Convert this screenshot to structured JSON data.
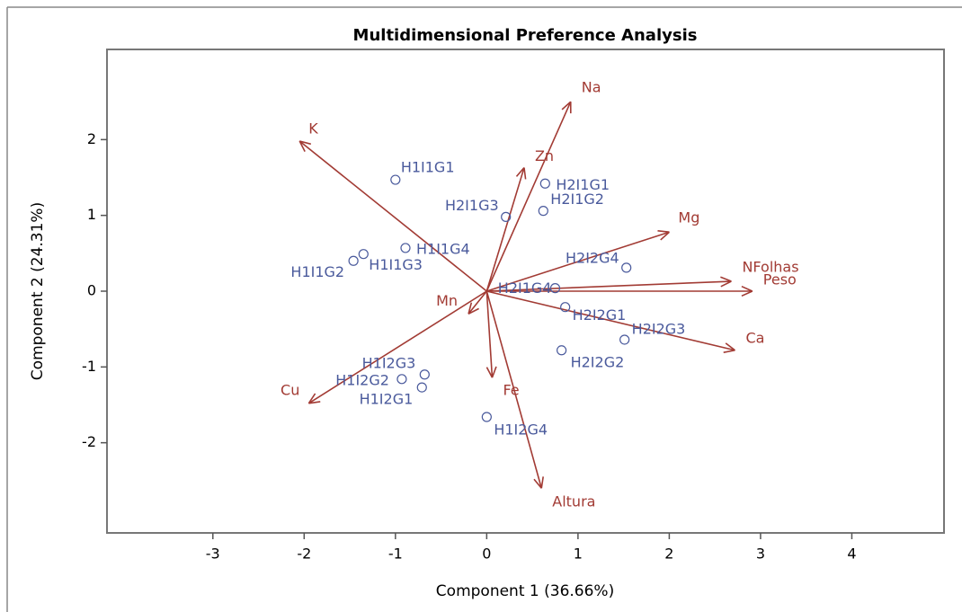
{
  "chart_data": {
    "type": "biplot",
    "title": "Multidimensional Preference Analysis",
    "x_label": "Component 1 (36.66%)",
    "y_label": "Component 2 (24.31%)",
    "xlim": [
      -4.16,
      5.01
    ],
    "ylim": [
      -3.19,
      3.19
    ],
    "xticks": [
      -3,
      -2,
      -1,
      0,
      1,
      2,
      3,
      4
    ],
    "yticks": [
      -2,
      -1,
      0,
      1,
      2
    ],
    "points": {
      "color": "#4a5a9c",
      "labels": [
        "H1I1G1",
        "H2I1G1",
        "H2I1G2",
        "H2I1G3",
        "H1I1G4",
        "H1I1G3",
        "H1I1G2",
        "H2I2G4",
        "H2I1G4",
        "H2I2G1",
        "H2I2G3",
        "H2I2G2",
        "H1I2G3",
        "H1I2G2",
        "H1I2G1",
        "H1I2G4"
      ],
      "x": [
        -1.0,
        0.64,
        0.62,
        0.21,
        -0.89,
        -1.35,
        -1.46,
        1.53,
        0.75,
        0.86,
        1.51,
        0.82,
        -0.68,
        -0.93,
        -0.71,
        0.0
      ],
      "y": [
        1.47,
        1.42,
        1.06,
        0.98,
        0.57,
        0.49,
        0.4,
        0.31,
        0.04,
        -0.21,
        -0.64,
        -0.78,
        -1.1,
        -1.16,
        -1.27,
        -1.66
      ]
    },
    "vectors": {
      "color": "#a23b34",
      "labels": [
        "Na",
        "K",
        "Zn",
        "Mg",
        "NFolhas",
        "Peso",
        "Ca",
        "Mn",
        "Fe",
        "Cu",
        "Altura"
      ],
      "x": [
        0.92,
        -2.05,
        0.41,
        2.0,
        2.68,
        2.91,
        2.72,
        -0.2,
        0.06,
        -1.95,
        0.6
      ],
      "y": [
        2.5,
        1.98,
        1.63,
        0.78,
        0.13,
        0.0,
        -0.78,
        -0.3,
        -1.14,
        -1.48,
        -2.6
      ]
    }
  }
}
